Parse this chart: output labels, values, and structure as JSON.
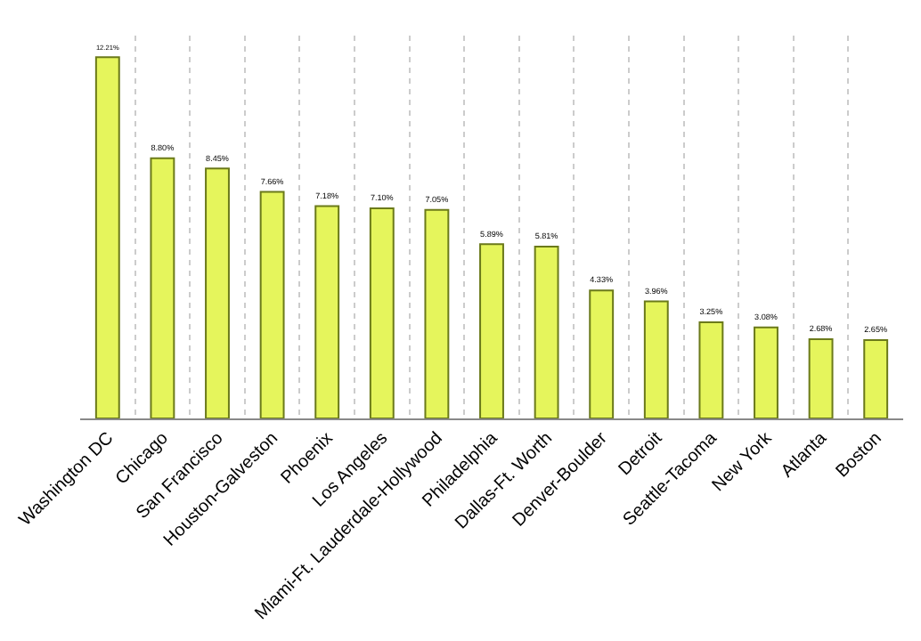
{
  "chart_data": {
    "type": "bar",
    "categories": [
      "Washington DC",
      "Chicago",
      "San Francisco",
      "Houston-Galveston",
      "Phoenix",
      "Los Angeles",
      "Miami-Ft. Lauderdale-Hollywood",
      "Philadelphia",
      "Dallas-Ft. Worth",
      "Denver-Boulder",
      "Detroit",
      "Seattle-Tacoma",
      "New York",
      "Atlanta",
      "Boston"
    ],
    "values": [
      12.21,
      8.8,
      8.45,
      7.66,
      7.18,
      7.1,
      7.05,
      5.89,
      5.81,
      4.33,
      3.96,
      3.25,
      3.08,
      2.68,
      2.65
    ],
    "value_labels": [
      "12.21%",
      "8.80%",
      "8.45%",
      "7.66%",
      "7.18%",
      "7.10%",
      "7.05%",
      "5.89%",
      "5.81%",
      "4.33%",
      "3.96%",
      "3.25%",
      "3.08%",
      "2.68%",
      "2.65%"
    ],
    "color": "#e5f55c",
    "grid": "x",
    "tick_labels": "x"
  }
}
